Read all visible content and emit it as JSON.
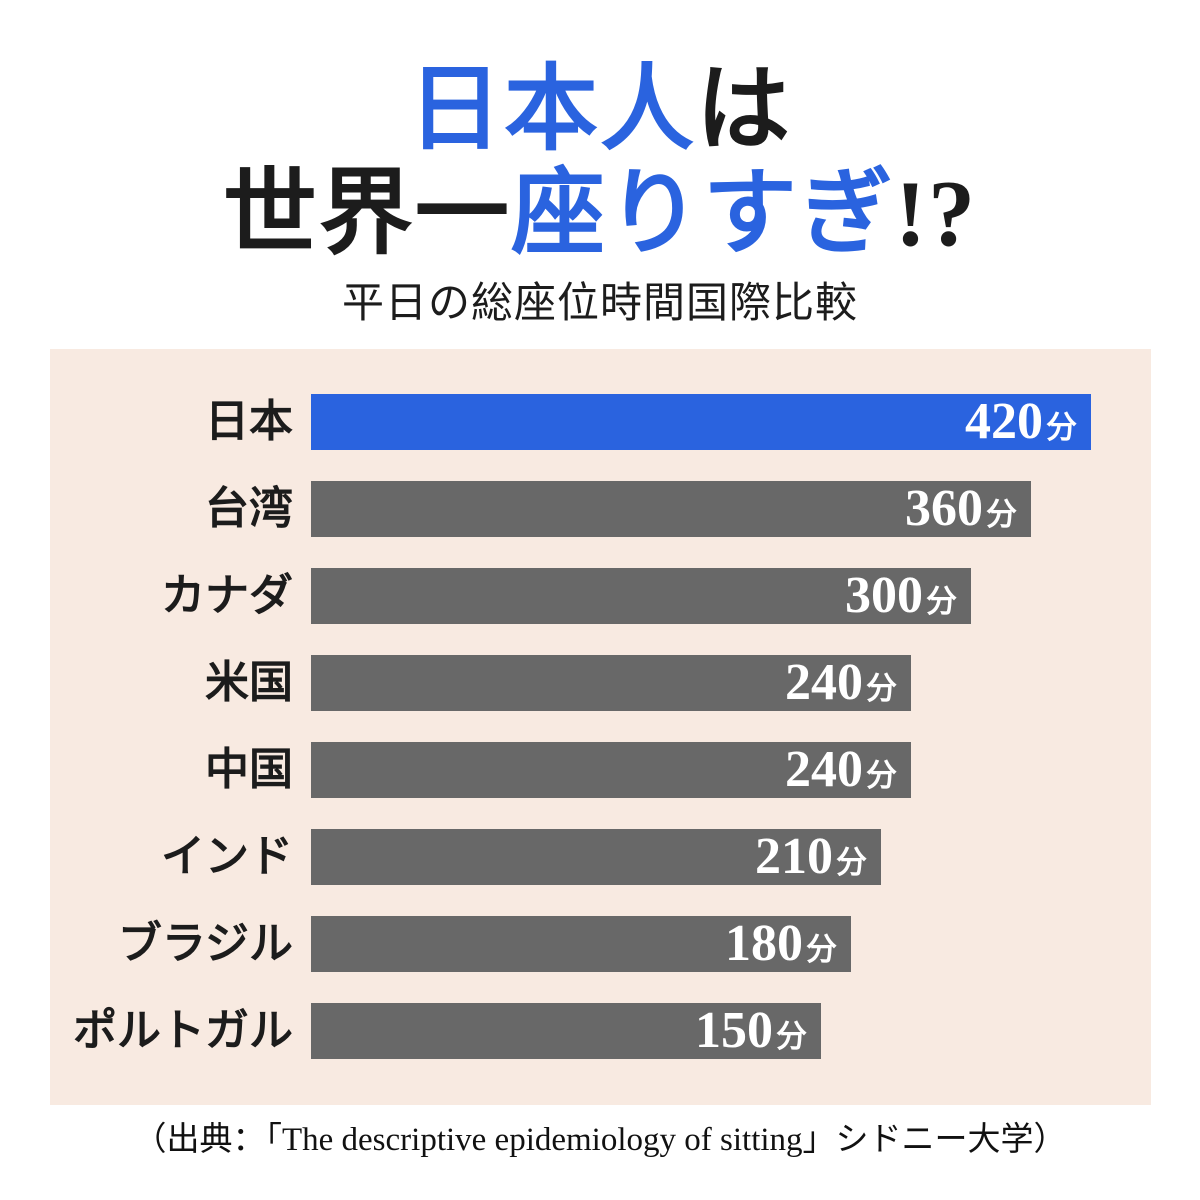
{
  "page": {
    "title_line1": [
      {
        "text": "日本人",
        "emphasis": true
      },
      {
        "text": "は",
        "emphasis": false
      }
    ],
    "title_line2": [
      {
        "text": "世界一",
        "emphasis": false
      },
      {
        "text": "座りすぎ",
        "emphasis": true
      },
      {
        "text": "!?",
        "emphasis": false
      }
    ],
    "subtitle": "平日の総座位時間国際比較",
    "source": "（出典：「The descriptive epidemiology of sitting」シドニー大学）"
  },
  "colors": {
    "accent_blue": "#2a63df",
    "bar_gray": "#686868",
    "panel_background": "#f8eae1",
    "text_black": "#1c1c1c",
    "value_text": "#ffffff"
  },
  "chart_data": {
    "type": "bar",
    "orientation": "horizontal",
    "title": "平日の総座位時間国際比較",
    "categories": [
      "日本",
      "台湾",
      "カナダ",
      "米国",
      "中国",
      "インド",
      "ブラジル",
      "ポルトガル"
    ],
    "values": [
      420,
      360,
      300,
      240,
      240,
      210,
      180,
      150
    ],
    "unit": "分",
    "xlabel": "",
    "ylabel": "",
    "xlim": [
      0,
      420
    ],
    "grid": false,
    "legend": "none",
    "highlight_index": 0,
    "value_labels_inside_bars": true
  }
}
